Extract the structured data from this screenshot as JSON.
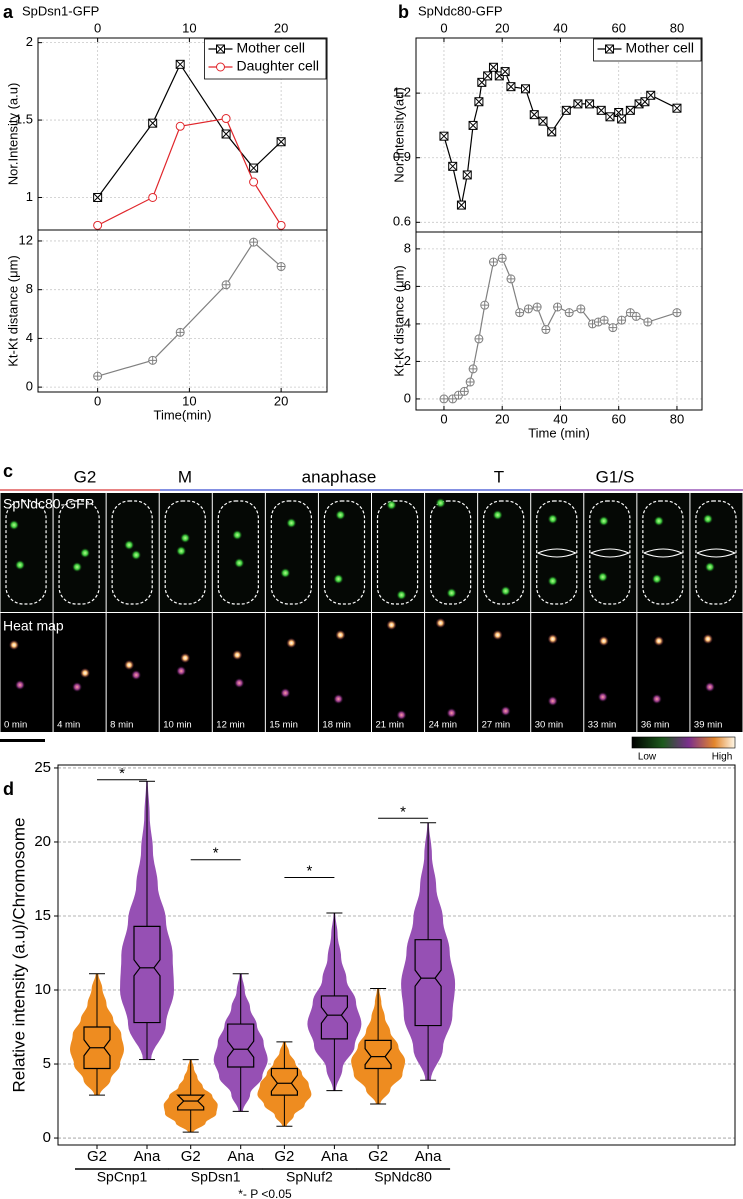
{
  "chart_data": [
    {
      "panel": "a",
      "type": "line",
      "title": "SpDsn1-GFP",
      "ylabel": "Nor.Intensity (a.u)",
      "xaxis": "top",
      "xlim": [
        -6.5,
        25
      ],
      "xticks": [
        0,
        10,
        20
      ],
      "ylim": [
        0.79,
        2.03
      ],
      "yticks": [
        1,
        1.5,
        2
      ],
      "grid": true,
      "legend": "top-right",
      "series": [
        {
          "name": "Mother cell",
          "color": "#000000",
          "marker": "square-x",
          "x": [
            0,
            6,
            9,
            14,
            17,
            20
          ],
          "values": [
            1,
            1.48,
            1.86,
            1.41,
            1.19,
            1.36
          ]
        },
        {
          "name": "Daughter cell",
          "color": "#e0262b",
          "marker": "circle",
          "x": [
            0,
            6,
            9,
            14,
            17,
            20
          ],
          "values": [
            0.82,
            1,
            1.46,
            1.51,
            1.1,
            0.82
          ]
        }
      ]
    },
    {
      "type": "line",
      "xlabel": "Time(min)",
      "ylabel": "Kt-Kt distance (μm)",
      "xlim": [
        -6.5,
        25
      ],
      "xticks": [
        0,
        10,
        20
      ],
      "ylim": [
        -0.4,
        12.9
      ],
      "yticks": [
        0,
        4,
        8,
        12
      ],
      "grid": true,
      "series": [
        {
          "color": "#808080",
          "marker": "circle-plus",
          "x": [
            0,
            6,
            9,
            14,
            17,
            20
          ],
          "values": [
            0.9,
            2.2,
            4.5,
            8.4,
            11.9,
            9.9
          ]
        }
      ]
    },
    {
      "panel": "b",
      "type": "line",
      "title": "SpNdc80-GFP",
      "ylabel": "Nor.Intensity(au)",
      "xaxis": "top",
      "xlim": [
        -9.6,
        88.6
      ],
      "xticks": [
        0,
        20,
        40,
        60,
        80
      ],
      "ylim": [
        0.555,
        1.456
      ],
      "yticks": [
        0.6,
        0.9,
        1.2
      ],
      "grid": true,
      "legend": "top-right",
      "series": [
        {
          "name": "Mother cell",
          "color": "#000000",
          "marker": "square-x",
          "x": [
            0,
            3,
            6,
            8,
            10,
            12,
            13,
            15,
            17,
            19,
            21,
            23,
            28,
            31,
            34,
            37,
            42,
            46,
            50,
            54,
            57,
            60,
            61,
            64,
            67,
            69,
            71,
            80
          ],
          "values": [
            1.0,
            0.86,
            0.68,
            0.82,
            1.05,
            1.16,
            1.25,
            1.28,
            1.32,
            1.28,
            1.3,
            1.23,
            1.22,
            1.1,
            1.07,
            1.02,
            1.12,
            1.15,
            1.15,
            1.12,
            1.09,
            1.11,
            1.08,
            1.12,
            1.15,
            1.16,
            1.19,
            1.13
          ]
        }
      ]
    },
    {
      "type": "line",
      "xlabel": "Time (min)",
      "ylabel": "Kt-Kt distance (μm)",
      "xlim": [
        -9.6,
        88.6
      ],
      "xticks": [
        0,
        20,
        40,
        60,
        80
      ],
      "ylim": [
        -0.59,
        8.9
      ],
      "yticks": [
        0,
        2,
        4,
        6,
        8
      ],
      "grid": true,
      "series": [
        {
          "color": "#808080",
          "marker": "circle-plus",
          "x": [
            0,
            3,
            5,
            7,
            9,
            10,
            12,
            14,
            17,
            20,
            23,
            26,
            29,
            32,
            35,
            39,
            43,
            47,
            51,
            53,
            55,
            58,
            61,
            64,
            66,
            70,
            80
          ],
          "values": [
            0,
            0,
            0.2,
            0.4,
            0.9,
            1.6,
            3.2,
            5,
            7.3,
            7.5,
            6.4,
            4.6,
            4.8,
            4.9,
            3.7,
            4.9,
            4.6,
            4.8,
            4,
            4.1,
            4.2,
            3.8,
            4.2,
            4.6,
            4.4,
            4.1,
            4.6
          ]
        }
      ]
    },
    {
      "panel": "d",
      "type": "violin",
      "ylabel": "Relative intensity (a.u)/Chromosome",
      "note": "*- P <0.05",
      "ylim": [
        -0.47,
        25.2
      ],
      "yticks": [
        0,
        5,
        10,
        15,
        20,
        25
      ],
      "grid": true,
      "categories": [
        "G2",
        "Ana",
        "G2",
        "Ana",
        "G2",
        "Ana",
        "G2",
        "Ana"
      ],
      "groups": [
        {
          "name": "SpCnp1",
          "significance": {
            "y": 24.2,
            "label": "*"
          }
        },
        {
          "name": "SpDsn1",
          "significance": {
            "y": 18.8,
            "label": "*"
          }
        },
        {
          "name": "SpNuf2",
          "significance": {
            "y": 17.6,
            "label": "*"
          }
        },
        {
          "name": "SpNdc80",
          "significance": {
            "y": 21.6,
            "label": "*"
          }
        }
      ],
      "violins": [
        {
          "color": "#ee8c20",
          "min": 2.9,
          "q1": 4.7,
          "median": 6.1,
          "q3": 7.5,
          "max": 11.1,
          "density": [
            0.1,
            0.5,
            0.85,
            1,
            0.9,
            0.6,
            0.35,
            0.2,
            0.05
          ]
        },
        {
          "color": "#9650b4",
          "min": 5.3,
          "q1": 7.8,
          "median": 11.5,
          "q3": 14.3,
          "max": 24.1,
          "density": [
            0.15,
            0.7,
            1,
            0.95,
            0.7,
            0.4,
            0.22,
            0.1,
            0.03
          ]
        },
        {
          "color": "#ee8c20",
          "min": 0.4,
          "q1": 1.9,
          "median": 2.5,
          "q3": 2.9,
          "max": 5.3,
          "density": [
            0.1,
            0.55,
            0.95,
            1,
            0.8,
            0.45,
            0.25,
            0.12,
            0.04
          ]
        },
        {
          "color": "#9650b4",
          "min": 1.8,
          "q1": 4.8,
          "median": 6.0,
          "q3": 7.7,
          "max": 11.1,
          "density": [
            0.08,
            0.35,
            0.8,
            1,
            0.85,
            0.6,
            0.35,
            0.15,
            0.04
          ]
        },
        {
          "color": "#ee8c20",
          "min": 0.8,
          "q1": 2.9,
          "median": 3.7,
          "q3": 4.7,
          "max": 6.5,
          "density": [
            0.08,
            0.35,
            0.75,
            1,
            0.9,
            0.65,
            0.4,
            0.18,
            0.05
          ]
        },
        {
          "color": "#9650b4",
          "min": 3.2,
          "q1": 6.7,
          "median": 8.3,
          "q3": 9.6,
          "max": 15.2,
          "density": [
            0.05,
            0.3,
            0.75,
            1,
            0.8,
            0.45,
            0.25,
            0.12,
            0.03
          ]
        },
        {
          "color": "#ee8c20",
          "min": 2.3,
          "q1": 4.7,
          "median": 5.5,
          "q3": 6.6,
          "max": 10.1,
          "density": [
            0.08,
            0.45,
            0.9,
            1,
            0.75,
            0.45,
            0.25,
            0.12,
            0.04
          ]
        },
        {
          "color": "#9650b4",
          "min": 3.9,
          "q1": 7.6,
          "median": 10.8,
          "q3": 13.4,
          "max": 21.3,
          "density": [
            0.1,
            0.55,
            0.9,
            1,
            0.8,
            0.55,
            0.3,
            0.14,
            0.03
          ]
        }
      ]
    }
  ],
  "panel_c": {
    "panel": "c",
    "phases": [
      "G2",
      "M",
      "anaphase",
      "T",
      "G1/S"
    ],
    "rows": [
      "SpNdc80-GFP",
      "Heat map"
    ],
    "times": [
      "0 min",
      "4 min",
      "8 min",
      "10 min",
      "12 min",
      "15 min",
      "18 min",
      "21 min",
      "24 min",
      "27 min",
      "30 min",
      "33 min",
      "36 min",
      "39 min"
    ],
    "colorbar": [
      "Low",
      "High"
    ]
  }
}
